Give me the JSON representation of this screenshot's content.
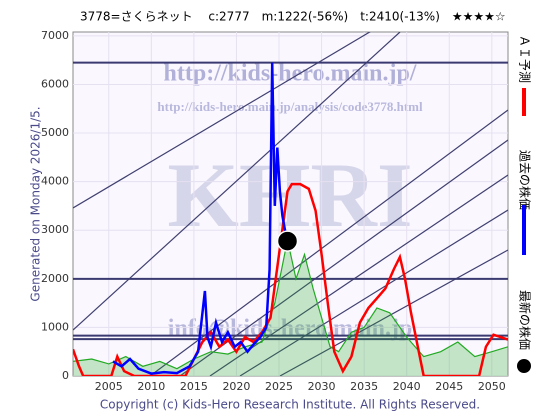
{
  "chart_data": {
    "type": "line",
    "title": "3778=さくらネット　 c:2777　m:1222(-56%)　t:2410(-13%)　★★★★☆",
    "side_note": "Generated on Monday 2026/1/5.",
    "footer": "Copyright (c) Kids-Hero Research Institute. All Rights Reserved.",
    "watermarks": [
      "http://kids-hero.main.jp/",
      "http://kids-hero.main.jp/analysis/code3778.html",
      "KHRI",
      "info@kids-hero.main.jp"
    ],
    "xlim": [
      2000.8,
      2051.9
    ],
    "ylim": [
      0,
      7080
    ],
    "xticks": [
      2005,
      2010,
      2015,
      2020,
      2025,
      2030,
      2035,
      2040,
      2045,
      2050
    ],
    "yticks": [
      0,
      1000,
      2000,
      3000,
      4000,
      5000,
      6000,
      7000
    ],
    "grid": true,
    "levels": [
      6450,
      2000,
      830,
      760
    ],
    "series": [
      {
        "name": "ＡＩ予測",
        "color": "#ff0000",
        "x": [
          2000.8,
          2001.5,
          2002,
          2005.3,
          2006,
          2006.8,
          2008,
          2010,
          2012,
          2014,
          2016,
          2017,
          2018,
          2019,
          2020,
          2021,
          2022,
          2023,
          2024,
          2025,
          2026,
          2026.5,
          2027.5,
          2028.5,
          2029.3,
          2030,
          2030.8,
          2031.5,
          2032.5,
          2033.5,
          2034.5,
          2035.5,
          2036.5,
          2037.5,
          2038.5,
          2039.2,
          2039.8,
          2040.5,
          2041.3,
          2042,
          2048.5,
          2049.3,
          2050.2,
          2051.9
        ],
        "values": [
          550,
          200,
          0,
          0,
          400,
          100,
          0,
          0,
          0,
          0,
          700,
          900,
          600,
          750,
          500,
          800,
          700,
          900,
          1200,
          2500,
          3800,
          3950,
          3950,
          3850,
          3400,
          2500,
          1400,
          500,
          100,
          400,
          1100,
          1400,
          1600,
          1800,
          2200,
          2450,
          2000,
          1300,
          600,
          0,
          0,
          600,
          850,
          750
        ]
      },
      {
        "name": "過去の株価",
        "color": "#0000ff",
        "x": [
          2005.5,
          2006.5,
          2007.5,
          2008.5,
          2010,
          2011.5,
          2013,
          2014.5,
          2015.5,
          2016.3,
          2016.6,
          2017,
          2017.6,
          2018.3,
          2019,
          2019.8,
          2020.5,
          2021.3,
          2022,
          2022.8,
          2023.5,
          2023.9,
          2024.2,
          2024.5,
          2024.8,
          2025.1,
          2025.4,
          2025.7,
          2026
        ],
        "values": [
          300,
          200,
          350,
          150,
          50,
          80,
          60,
          200,
          500,
          1750,
          800,
          600,
          1100,
          700,
          900,
          600,
          700,
          500,
          650,
          800,
          1000,
          2200,
          6450,
          3500,
          4700,
          3800,
          3300,
          3000,
          2777
        ]
      },
      {
        "color": "#22aa22",
        "x": [
          2000.8,
          2003,
          2005,
          2007,
          2009,
          2011,
          2013,
          2015,
          2017,
          2019,
          2021,
          2023,
          2024.5,
          2026,
          2027,
          2028,
          2029,
          2030,
          2031,
          2032,
          2033.5,
          2035,
          2036.5,
          2038,
          2040,
          2042,
          2044,
          2046,
          2048,
          2050,
          2051.9
        ],
        "values": [
          300,
          350,
          250,
          400,
          200,
          300,
          150,
          350,
          500,
          450,
          600,
          700,
          1500,
          2800,
          2000,
          2500,
          1800,
          1200,
          600,
          500,
          900,
          1000,
          1400,
          1300,
          800,
          400,
          500,
          700,
          400,
          500,
          600
        ]
      }
    ],
    "latest": {
      "name": "最新の株価",
      "x": 2026,
      "y": 2777
    }
  }
}
